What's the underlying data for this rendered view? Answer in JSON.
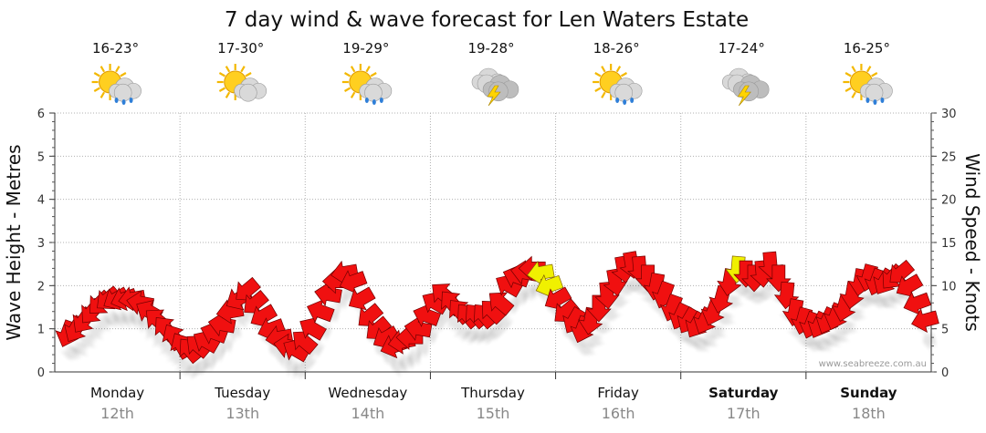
{
  "chart_data": {
    "type": "line",
    "title": "7 day wind & wave forecast for Len Waters Estate",
    "ylabel_left": "Wave Height - Metres",
    "ylabel_right": "Wind Speed - Knots",
    "ylim_left": [
      0,
      6
    ],
    "ylim_right": [
      0,
      30
    ],
    "yticks_left": [
      "0",
      "1",
      "2",
      "3",
      "4",
      "5",
      "6"
    ],
    "yticks_right": [
      "0",
      "5",
      "10",
      "15",
      "20",
      "25",
      "30"
    ],
    "grid": true,
    "credit": "www.seabreeze.com.au",
    "days": [
      {
        "day": "Monday",
        "date": "12th",
        "temp": "16-23°",
        "icon": "sun-cloud-rain-icon",
        "bold": false
      },
      {
        "day": "Tuesday",
        "date": "13th",
        "temp": "17-30°",
        "icon": "sun-cloud-icon",
        "bold": false
      },
      {
        "day": "Wednesday",
        "date": "14th",
        "temp": "19-29°",
        "icon": "sun-cloud-rain-icon",
        "bold": false
      },
      {
        "day": "Thursday",
        "date": "15th",
        "temp": "19-28°",
        "icon": "storm-cloud-icon",
        "bold": false
      },
      {
        "day": "Friday",
        "date": "16th",
        "temp": "18-26°",
        "icon": "sun-cloud-rain-icon",
        "bold": false
      },
      {
        "day": "Saturday",
        "date": "17th",
        "temp": "17-24°",
        "icon": "storm-cloud-icon",
        "bold": true
      },
      {
        "day": "Sunday",
        "date": "18th",
        "temp": "16-25°",
        "icon": "sun-cloud-rain-icon",
        "bold": true
      }
    ],
    "series": [
      {
        "name": "Wind Speed",
        "unit": "knots",
        "values": [
          4.5,
          5.0,
          6.0,
          7.0,
          8.0,
          8.5,
          8.5,
          8.5,
          8.5,
          8.0,
          7.0,
          6.0,
          5.0,
          4.0,
          3.0,
          2.5,
          3.0,
          3.5,
          4.5,
          5.5,
          7.0,
          8.5,
          9.5,
          8.0,
          6.5,
          5.0,
          4.0,
          3.0,
          2.5,
          3.5,
          5.0,
          7.0,
          9.0,
          10.5,
          11.5,
          10.5,
          8.5,
          6.5,
          5.0,
          4.0,
          3.0,
          3.5,
          4.0,
          5.0,
          6.5,
          8.0,
          9.0,
          8.0,
          7.0,
          6.5,
          6.5,
          6.5,
          7.0,
          8.0,
          10.0,
          11.0,
          11.5,
          12.0,
          11.5,
          10.0,
          8.5,
          7.0,
          6.0,
          5.0,
          6.0,
          7.5,
          9.0,
          10.5,
          12.0,
          12.5,
          12.0,
          11.0,
          10.0,
          9.0,
          7.5,
          6.5,
          6.0,
          5.5,
          6.0,
          7.0,
          8.5,
          10.5,
          12.0,
          11.5,
          11.0,
          11.5,
          12.5,
          11.0,
          9.0,
          7.0,
          6.0,
          5.5,
          5.5,
          6.0,
          6.5,
          7.5,
          9.0,
          10.5,
          11.0,
          10.5,
          10.5,
          11.0,
          11.5,
          10.0,
          8.0,
          6.0
        ]
      },
      {
        "name": "Wave Height",
        "unit": "metres",
        "values": [
          0.8,
          0.9,
          1.1,
          1.3,
          1.5,
          1.6,
          1.6,
          1.6,
          1.5,
          1.4,
          1.2,
          1.0,
          0.9,
          0.8,
          0.6,
          0.5,
          0.6,
          0.7,
          0.9,
          1.1,
          1.4,
          1.7,
          1.9,
          1.6,
          1.3,
          1.0,
          0.8,
          0.6,
          0.5,
          0.7,
          1.0,
          1.4,
          1.8,
          2.1,
          2.3,
          2.1,
          1.7,
          1.3,
          1.0,
          0.8,
          0.6,
          0.7,
          0.8,
          1.0,
          1.3,
          1.6,
          1.8,
          1.6,
          1.4,
          1.3,
          1.3,
          1.3,
          1.4,
          1.6,
          2.0,
          2.2,
          2.3,
          2.4,
          2.3,
          2.0,
          1.7,
          1.4,
          1.2,
          1.0,
          1.2,
          1.5,
          1.8,
          2.1,
          2.4,
          2.5,
          2.4,
          2.2,
          2.0,
          1.8,
          1.5,
          1.3,
          1.2,
          1.1,
          1.2,
          1.4,
          1.7,
          2.1,
          2.4,
          2.3,
          2.2,
          2.3,
          2.5,
          2.2,
          1.8,
          1.4,
          1.2,
          1.1,
          1.1,
          1.2,
          1.3,
          1.5,
          1.8,
          2.1,
          2.2,
          2.1,
          2.1,
          2.2,
          2.3,
          2.0,
          1.6,
          1.2
        ]
      }
    ],
    "direction_deg": [
      200,
      210,
      215,
      220,
      225,
      230,
      240,
      250,
      260,
      280,
      300,
      310,
      320,
      330,
      330,
      320,
      310,
      300,
      290,
      280,
      260,
      240,
      230,
      230,
      240,
      250,
      260,
      280,
      300,
      310,
      300,
      290,
      280,
      270,
      260,
      250,
      240,
      230,
      230,
      240,
      250,
      260,
      270,
      280,
      290,
      300,
      310,
      320,
      320,
      320,
      320,
      320,
      315,
      310,
      300,
      290,
      280,
      270,
      260,
      250,
      240,
      230,
      210,
      200,
      190,
      180,
      175,
      170,
      170,
      170,
      175,
      180,
      190,
      200,
      200,
      205,
      210,
      210,
      205,
      200,
      195,
      190,
      185,
      180,
      180,
      175,
      175,
      180,
      185,
      190,
      195,
      200,
      205,
      205,
      200,
      195,
      190,
      190,
      195,
      200,
      210,
      220,
      230,
      240,
      250,
      255
    ],
    "highlight_arrows": [
      58,
      59,
      82
    ],
    "colors": {
      "arrow": "#f01010",
      "arrow_stroke": "#700000",
      "highlight": "#f0f000",
      "grid": "#b0b0b0"
    }
  }
}
